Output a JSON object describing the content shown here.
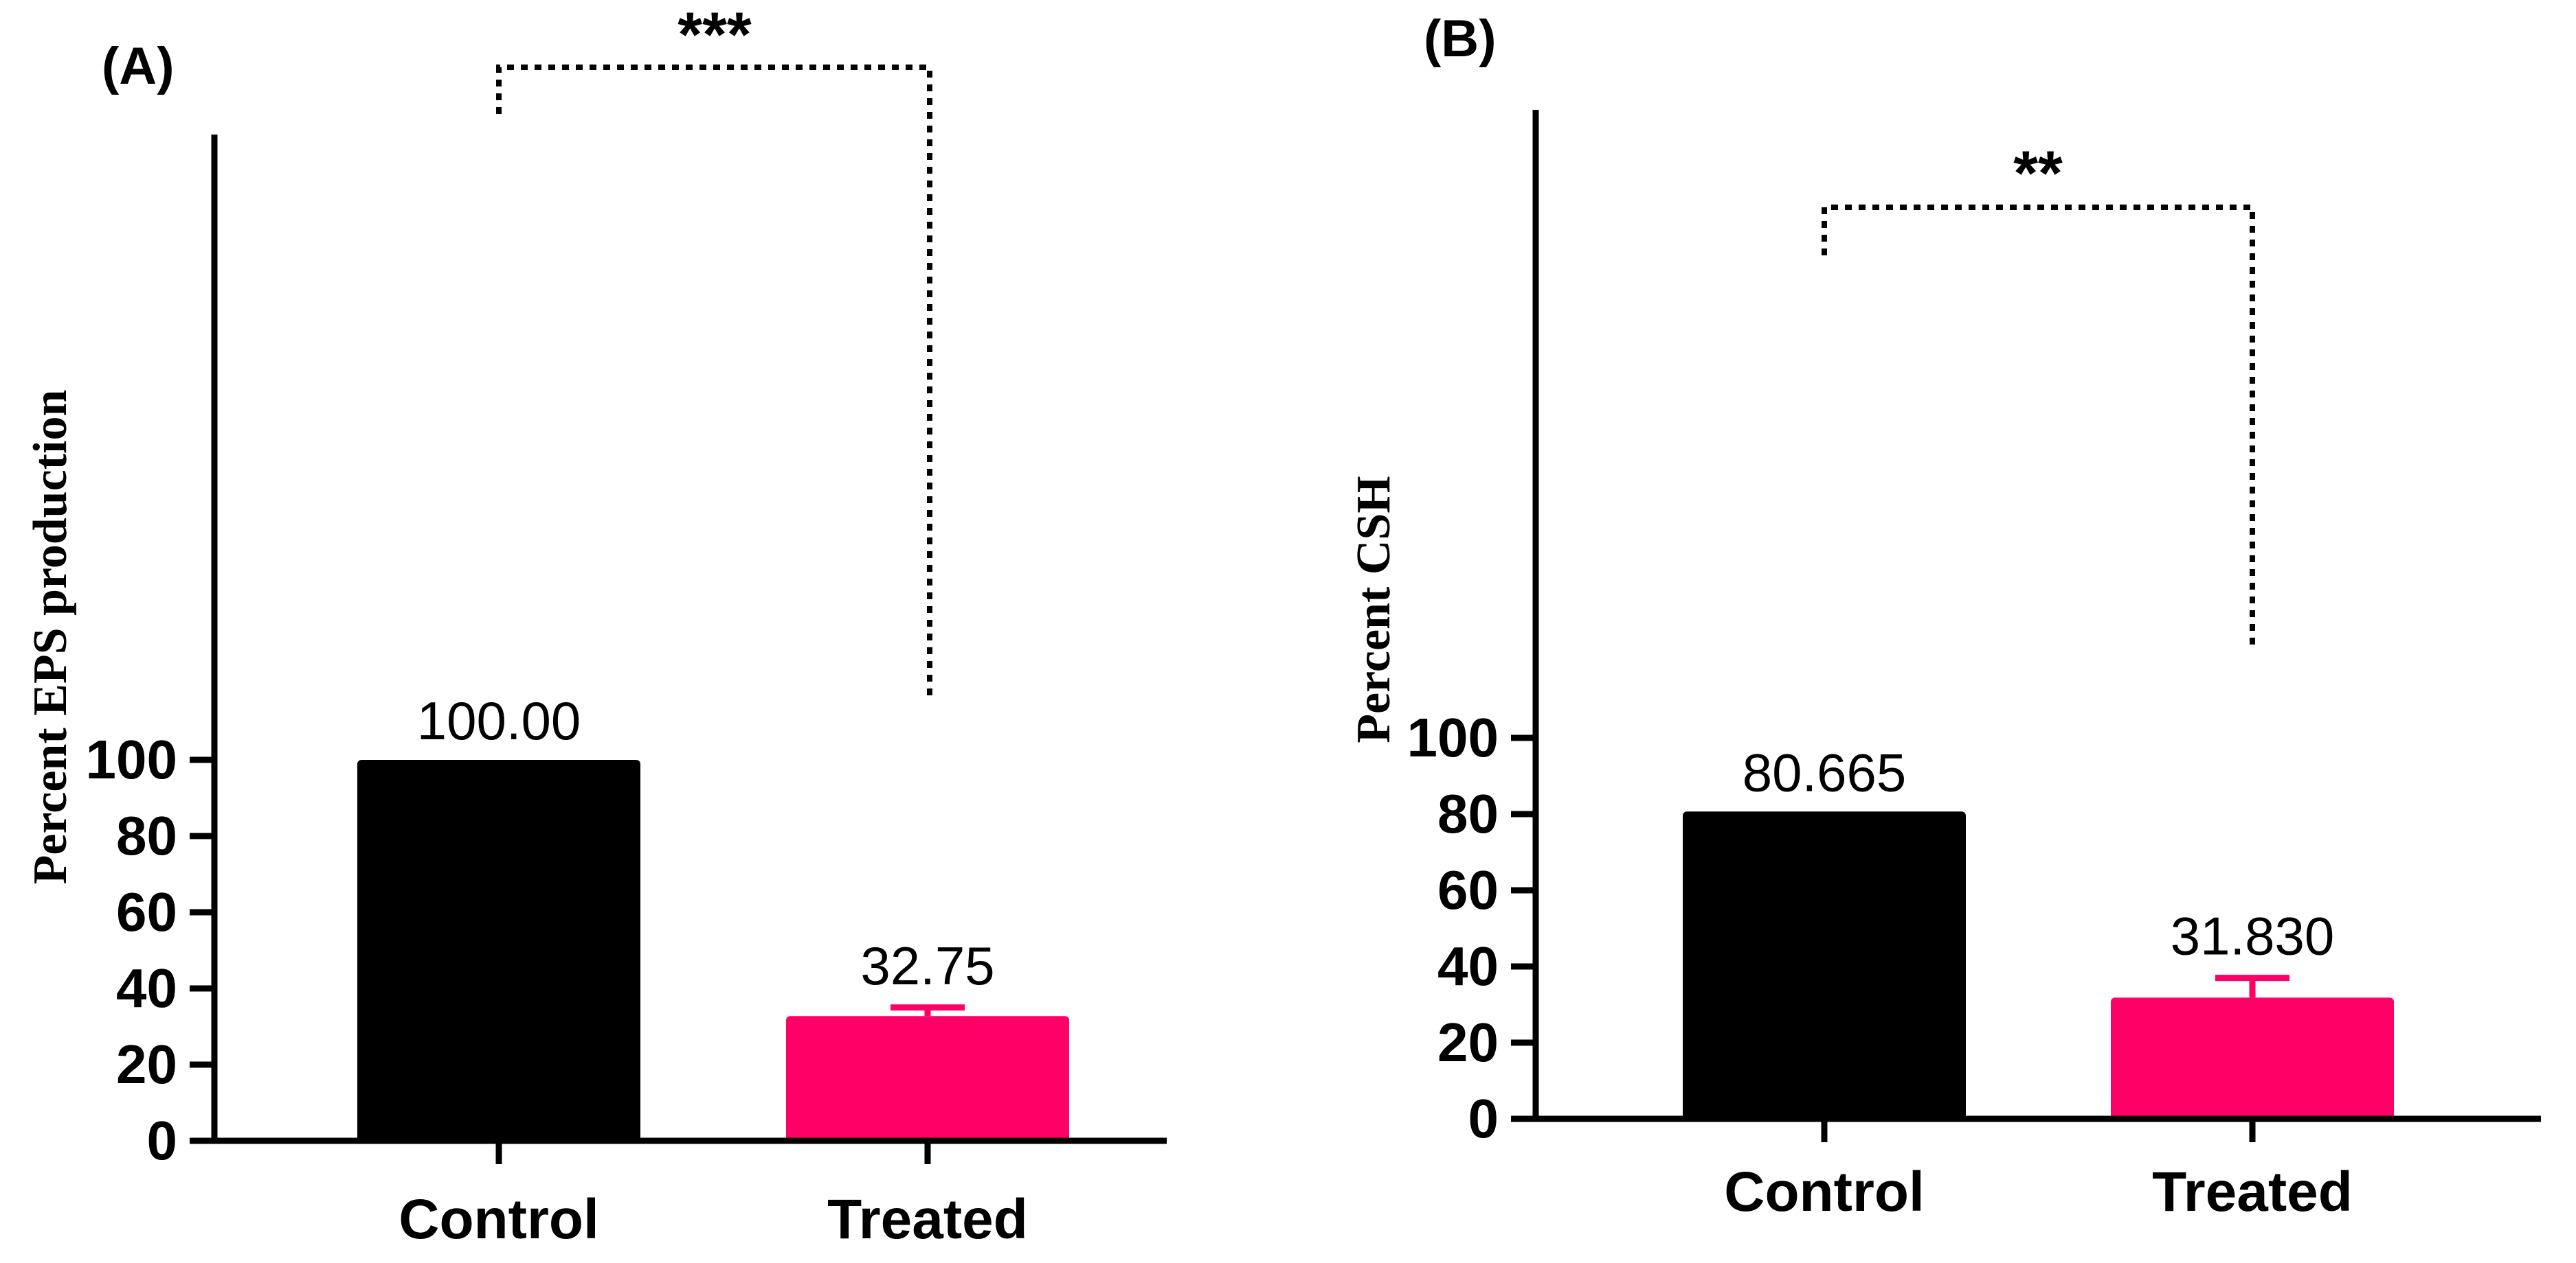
{
  "colors": {
    "axis": "#000000",
    "control": "#000000",
    "treated": "#ff0066"
  },
  "chart_data": [
    {
      "type": "bar",
      "panel_label": "(A)",
      "title": "",
      "xlabel": "",
      "ylabel": "Percent EPS production",
      "ylim": [
        0,
        110
      ],
      "yticks": [
        "0",
        "20",
        "40",
        "60",
        "80",
        "100"
      ],
      "categories": [
        "Control",
        "Treated"
      ],
      "values": [
        100.0,
        32.75
      ],
      "value_labels": [
        "100.00",
        "32.75"
      ],
      "error_upper": [
        null,
        35
      ],
      "significance": "***",
      "grid": false,
      "legend": "none"
    },
    {
      "type": "bar",
      "panel_label": "(B)",
      "title": "",
      "xlabel": "",
      "ylabel": "Percent CSH",
      "ylim": [
        0,
        110
      ],
      "yticks": [
        "0",
        "20",
        "40",
        "60",
        "80",
        "100"
      ],
      "categories": [
        "Control",
        "Treated"
      ],
      "values": [
        80.665,
        31.83
      ],
      "value_labels": [
        "80.665",
        "31.830"
      ],
      "error_upper": [
        null,
        37
      ],
      "significance": "**",
      "grid": false,
      "legend": "none"
    }
  ]
}
